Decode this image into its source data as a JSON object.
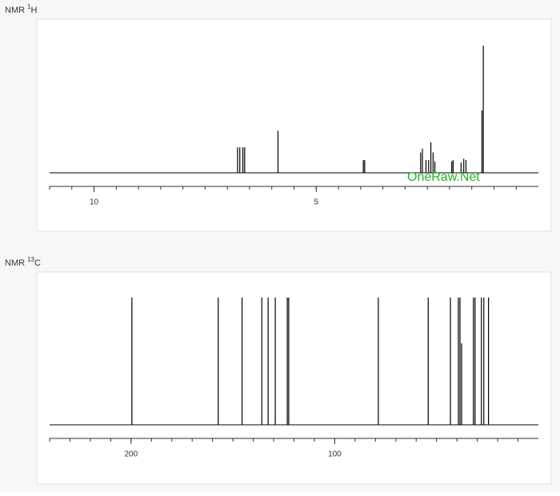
{
  "chart_data": [
    {
      "type": "spectrum",
      "title": {
        "prefix": "NMR",
        "superscript": "1",
        "suffix": "H"
      },
      "watermark": "OneRaw.Net",
      "x": [
        6.77,
        6.72,
        6.65,
        6.61,
        5.86,
        3.94,
        3.91,
        2.65,
        2.61,
        2.53,
        2.47,
        2.42,
        2.37,
        2.33,
        1.95,
        1.92,
        1.74,
        1.68,
        1.63,
        1.27,
        1.24
      ],
      "values": [
        20,
        20,
        20,
        20,
        33,
        10,
        10,
        16,
        19,
        10,
        10,
        24,
        16,
        9,
        9,
        10,
        8,
        11,
        10,
        49,
        100
      ],
      "xlim": [
        11,
        0
      ],
      "xticks": [
        10,
        5
      ],
      "xminor_ticks": [
        11,
        10.5,
        10,
        9.5,
        9,
        8.5,
        8,
        7.5,
        7,
        6.5,
        6,
        5.5,
        5,
        4.5,
        4,
        3.5,
        3,
        2.5,
        2,
        1.5,
        1,
        0.5
      ],
      "ylim": [
        0,
        100
      ],
      "color": "#000000"
    },
    {
      "type": "spectrum",
      "title": {
        "prefix": "NMR",
        "superscript": "13",
        "suffix": "C"
      },
      "x": [
        199.6,
        157.2,
        145.5,
        135.8,
        132.7,
        129.2,
        123.3,
        122.6,
        78.6,
        54.1,
        43.2,
        39.3,
        38.5,
        37.7,
        31.9,
        31.1,
        28.0,
        26.8,
        24.5
      ],
      "values": [
        100,
        100,
        100,
        100,
        100,
        100,
        100,
        100,
        100,
        100,
        100,
        100,
        100,
        64,
        100,
        100,
        100,
        100,
        100
      ],
      "xlim": [
        240,
        0
      ],
      "xticks": [
        200,
        100
      ],
      "xminor_ticks": [
        240,
        230,
        220,
        210,
        200,
        190,
        180,
        170,
        160,
        150,
        140,
        130,
        120,
        110,
        100,
        90,
        80,
        70,
        60,
        50,
        40,
        30,
        20,
        10
      ],
      "ylim": [
        0,
        100
      ],
      "color": "#000000"
    }
  ]
}
